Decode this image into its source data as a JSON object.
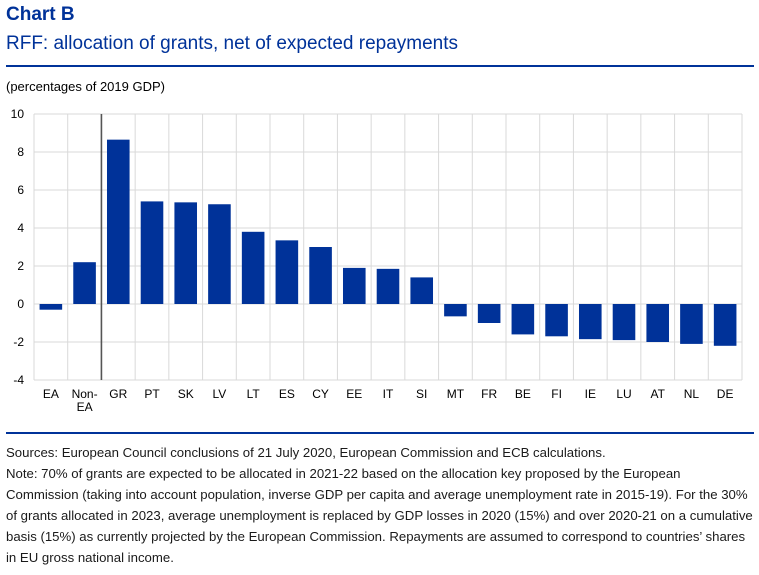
{
  "header": {
    "label": "Chart B",
    "title": "RFF: allocation of grants, net of expected repayments"
  },
  "units": "(percentages of 2019 GDP)",
  "chart_data": {
    "type": "bar",
    "title": "RFF: allocation of grants, net of expected repayments",
    "ylabel": "(percentages of 2019 GDP)",
    "xlabel": "",
    "ylim": [
      -4,
      10
    ],
    "yticks": [
      -4,
      -2,
      0,
      2,
      4,
      6,
      8,
      10
    ],
    "grid": true,
    "color": "#003299",
    "categories": [
      "EA",
      "Non-\nEA",
      "GR",
      "PT",
      "SK",
      "LV",
      "LT",
      "ES",
      "CY",
      "EE",
      "IT",
      "SI",
      "MT",
      "FR",
      "BE",
      "FI",
      "IE",
      "LU",
      "AT",
      "NL",
      "DE"
    ],
    "values": [
      -0.3,
      2.2,
      8.65,
      5.4,
      5.35,
      5.25,
      3.8,
      3.35,
      3.0,
      1.9,
      1.85,
      1.4,
      -0.65,
      -1.0,
      -1.6,
      -1.7,
      -1.85,
      -1.9,
      -2.0,
      -2.1,
      -2.2
    ],
    "separator_after_index": 1
  },
  "footer": {
    "sources": "Sources: European Council conclusions of 21 July 2020, European Commission and ECB calculations.",
    "note": "Note: 70% of grants are expected to be allocated in 2021-22 based on the allocation key proposed by the European Commission (taking into account population, inverse GDP per capita and average unemployment rate in 2015-19). For the 30% of grants allocated in 2023, average unemployment is replaced by GDP losses in 2020 (15%) and over 2020-21 on a cumulative basis (15%) as currently projected by the European Commission. Repayments are assumed to correspond to countries’ shares in EU gross national income."
  }
}
